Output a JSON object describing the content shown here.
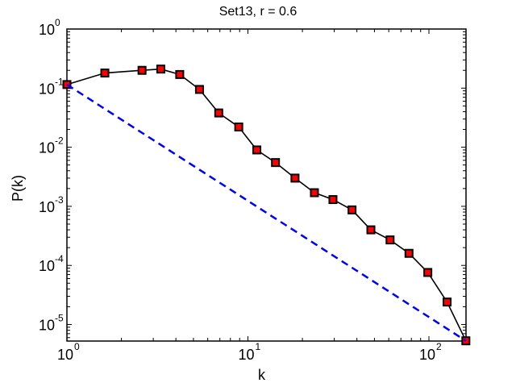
{
  "chart_data": {
    "type": "line",
    "title": "Set13, r = 0.6",
    "xlabel": "k",
    "ylabel": "P(k)",
    "xscale": "log",
    "yscale": "log",
    "xlim": [
      1,
      160
    ],
    "ylim": [
      5e-06,
      1
    ],
    "grid": false,
    "legend": null,
    "x_ticks": [
      {
        "value": 1,
        "label": "10",
        "exp": "0"
      },
      {
        "value": 10,
        "label": "10",
        "exp": "1"
      },
      {
        "value": 100,
        "label": "10",
        "exp": "2"
      }
    ],
    "y_ticks": [
      {
        "value": 1,
        "label": "10",
        "exp": "0"
      },
      {
        "value": 0.1,
        "label": "10",
        "exp": "-1"
      },
      {
        "value": 0.01,
        "label": "10",
        "exp": "-2"
      },
      {
        "value": 0.001,
        "label": "10",
        "exp": "-3"
      },
      {
        "value": 0.0001,
        "label": "10",
        "exp": "-4"
      },
      {
        "value": 1e-05,
        "label": "10",
        "exp": "-5"
      }
    ],
    "series": [
      {
        "name": "P(k) data",
        "style": "solid",
        "color": "#000000",
        "marker": "square",
        "marker_color": "#ff0000",
        "x": [
          1,
          1.62,
          2.6,
          3.3,
          4.2,
          5.4,
          6.9,
          8.9,
          11.2,
          14.2,
          18.2,
          23.3,
          29.5,
          37.6,
          47.8,
          61,
          77.6,
          98.6,
          126,
          160
        ],
        "y": [
          0.115,
          0.18,
          0.2,
          0.21,
          0.17,
          0.095,
          0.038,
          0.022,
          0.009,
          0.0055,
          0.003,
          0.0017,
          0.0013,
          0.00087,
          0.0004,
          0.00027,
          0.00016,
          7.6e-05,
          2.4e-05,
          5.3e-06
        ]
      },
      {
        "name": "power-law reference",
        "style": "dashed",
        "color": "#0000ff",
        "marker": null,
        "x": [
          1,
          160
        ],
        "y": [
          0.115,
          5.3e-06
        ]
      }
    ]
  }
}
